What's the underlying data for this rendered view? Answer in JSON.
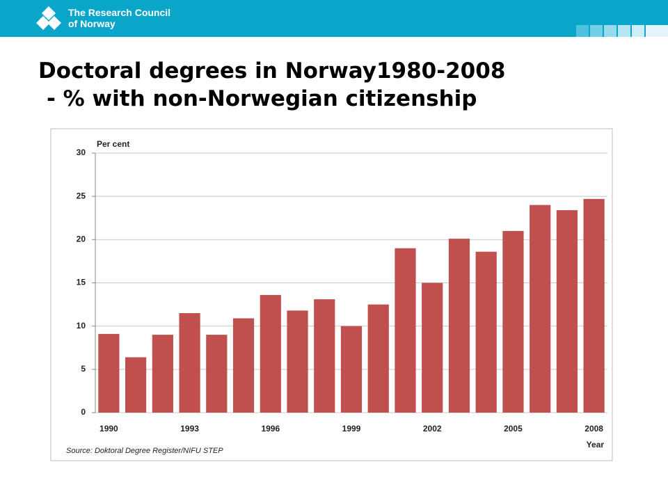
{
  "header": {
    "org_name": [
      "The Research Council",
      "of Norway"
    ]
  },
  "slide": {
    "title_lines": [
      "Doctoral degrees  in Norway1980-2008",
      "- % with non-Norwegian citizenship"
    ]
  },
  "chart_data": {
    "type": "bar",
    "y_label": "Per cent",
    "x_label": "Year",
    "source": "Source:  Doktoral Degree Register/NIFU STEP",
    "categories": [
      "1990",
      null,
      null,
      "1993",
      null,
      null,
      "1996",
      null,
      null,
      "1999",
      null,
      null,
      "2002",
      null,
      null,
      "2005",
      null,
      null,
      "2008"
    ],
    "values": [
      9.1,
      6.4,
      9.0,
      11.5,
      9.0,
      10.9,
      13.6,
      11.8,
      13.1,
      10.0,
      12.5,
      19.0,
      15.0,
      20.1,
      18.6,
      21.0,
      24.0,
      23.4,
      24.7
    ],
    "color": "#c0504d",
    "ylim": [
      0,
      30
    ],
    "yticks": [
      0,
      5,
      10,
      15,
      20,
      25,
      30
    ],
    "grid": true
  }
}
